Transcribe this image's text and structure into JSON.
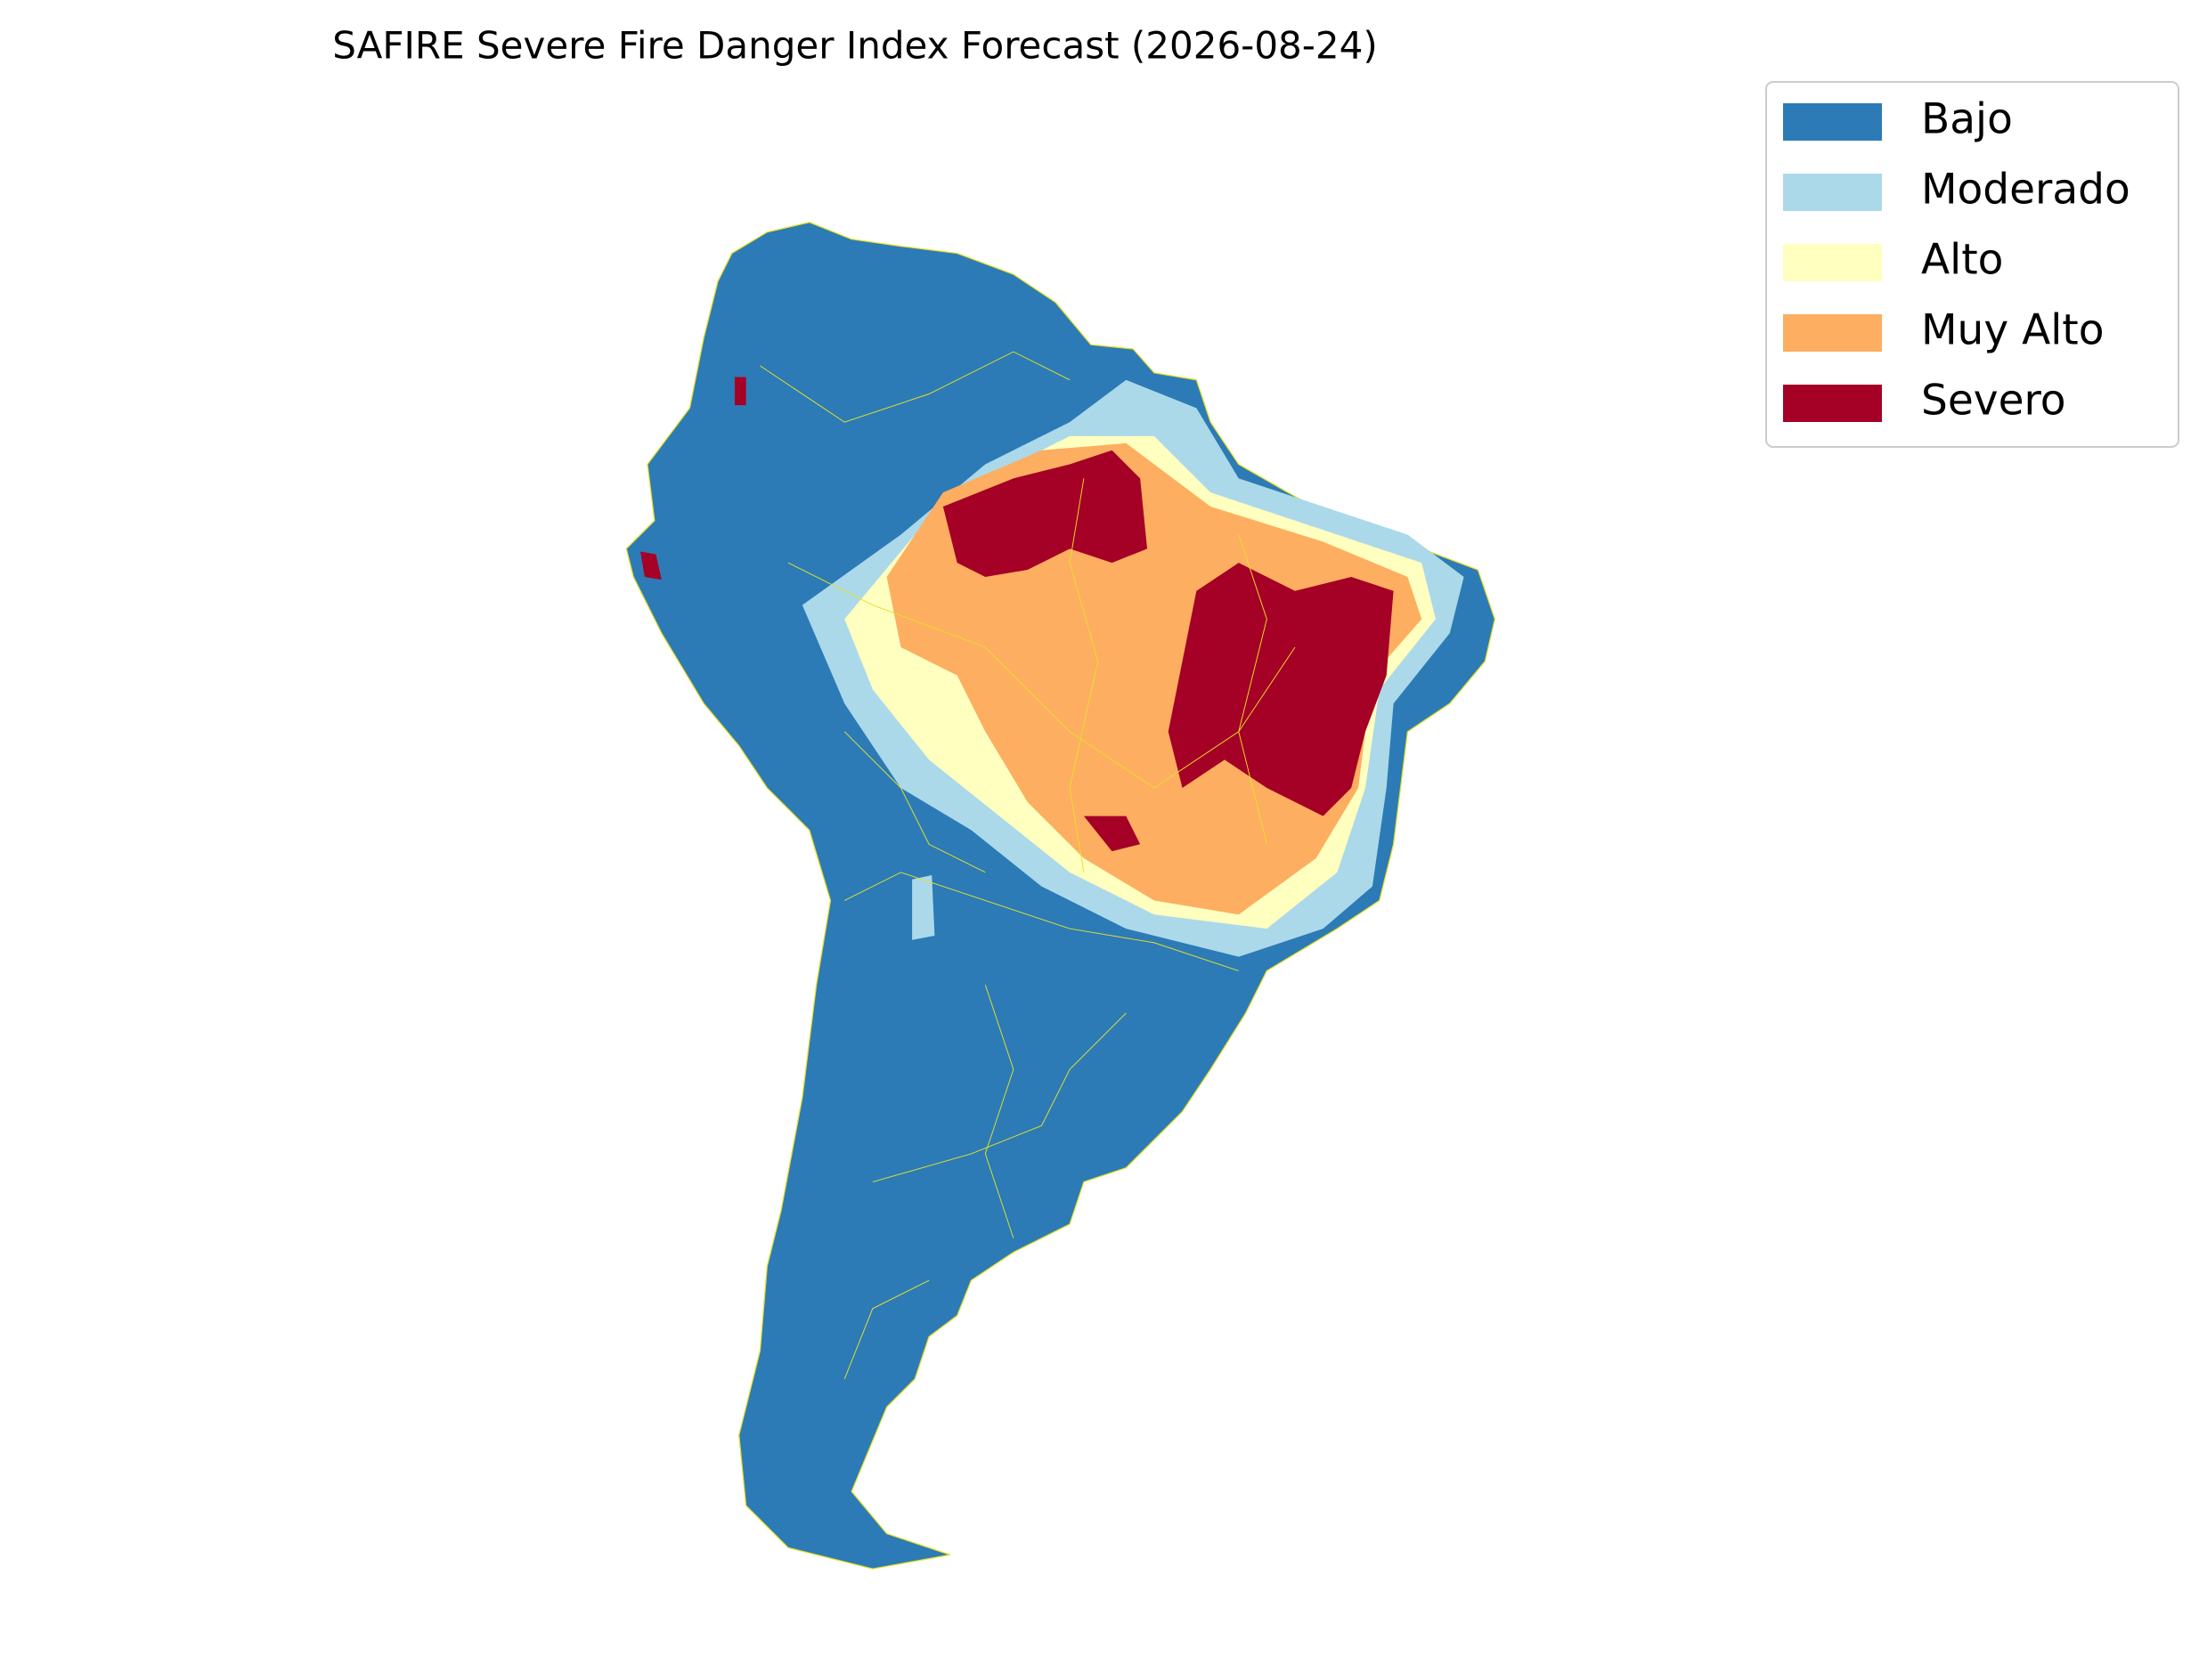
{
  "title": "SAFIRE Severe Fire Danger Index Forecast (2026-08-24)",
  "legend": {
    "items": [
      {
        "label": "Bajo",
        "color": "#2c7bb6"
      },
      {
        "label": "Moderado",
        "color": "#abd9e9"
      },
      {
        "label": "Alto",
        "color": "#ffffbf"
      },
      {
        "label": "Muy Alto",
        "color": "#fdae61"
      },
      {
        "label": "Severo",
        "color": "#a50026"
      }
    ]
  }
}
